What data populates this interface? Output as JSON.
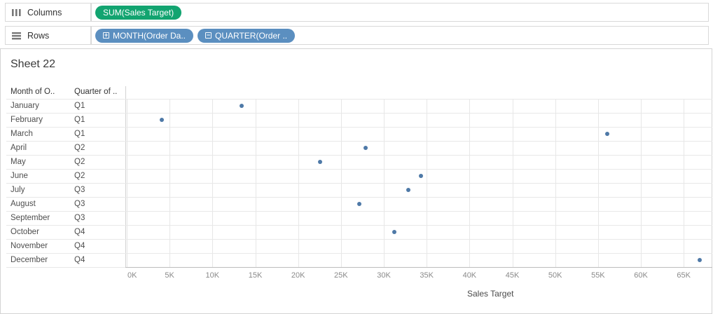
{
  "shelves": {
    "columns": {
      "label": "Columns",
      "pills": [
        {
          "label": "SUM(Sales Target)",
          "kind": "measure",
          "expander": "none"
        }
      ]
    },
    "rows": {
      "label": "Rows",
      "pills": [
        {
          "label": "MONTH(Order Da..",
          "kind": "dimension",
          "expander": "plus"
        },
        {
          "label": "QUARTER(Order ..",
          "kind": "dimension",
          "expander": "minus"
        }
      ]
    }
  },
  "sheet_title": "Sheet 22",
  "table": {
    "col_headers": [
      "Month of O..",
      "Quarter of .."
    ],
    "rows": [
      [
        "January",
        "Q1"
      ],
      [
        "February",
        "Q1"
      ],
      [
        "March",
        "Q1"
      ],
      [
        "April",
        "Q2"
      ],
      [
        "May",
        "Q2"
      ],
      [
        "June",
        "Q2"
      ],
      [
        "July",
        "Q3"
      ],
      [
        "August",
        "Q3"
      ],
      [
        "September",
        "Q3"
      ],
      [
        "October",
        "Q4"
      ],
      [
        "November",
        "Q4"
      ],
      [
        "December",
        "Q4"
      ]
    ]
  },
  "chart_data": {
    "type": "scatter",
    "title": "Sheet 22",
    "categories": [
      "January",
      "February",
      "March",
      "April",
      "May",
      "June",
      "July",
      "August",
      "September",
      "October",
      "November",
      "December"
    ],
    "quarters": [
      "Q1",
      "Q1",
      "Q1",
      "Q2",
      "Q2",
      "Q2",
      "Q3",
      "Q3",
      "Q3",
      "Q4",
      "Q4",
      "Q4"
    ],
    "series": [
      {
        "name": "Sales Target",
        "values": [
          13400,
          4100,
          56100,
          27900,
          22600,
          34300,
          32900,
          27100,
          null,
          31200,
          null,
          66900
        ]
      }
    ],
    "xlabel": "Sales Target",
    "x_ticks": [
      "0K",
      "5K",
      "10K",
      "15K",
      "20K",
      "25K",
      "30K",
      "35K",
      "40K",
      "45K",
      "50K",
      "55K",
      "60K",
      "65K"
    ],
    "x_tick_values": [
      0,
      5000,
      10000,
      15000,
      20000,
      25000,
      30000,
      35000,
      40000,
      45000,
      50000,
      55000,
      60000,
      65000
    ],
    "xlim": [
      0,
      68500
    ],
    "grid": true,
    "legend": false,
    "mark_color": "#4e79a7"
  },
  "colors": {
    "measure_pill": "#12a470",
    "dimension_pill": "#5b8fc0",
    "mark": "#4e79a7"
  }
}
